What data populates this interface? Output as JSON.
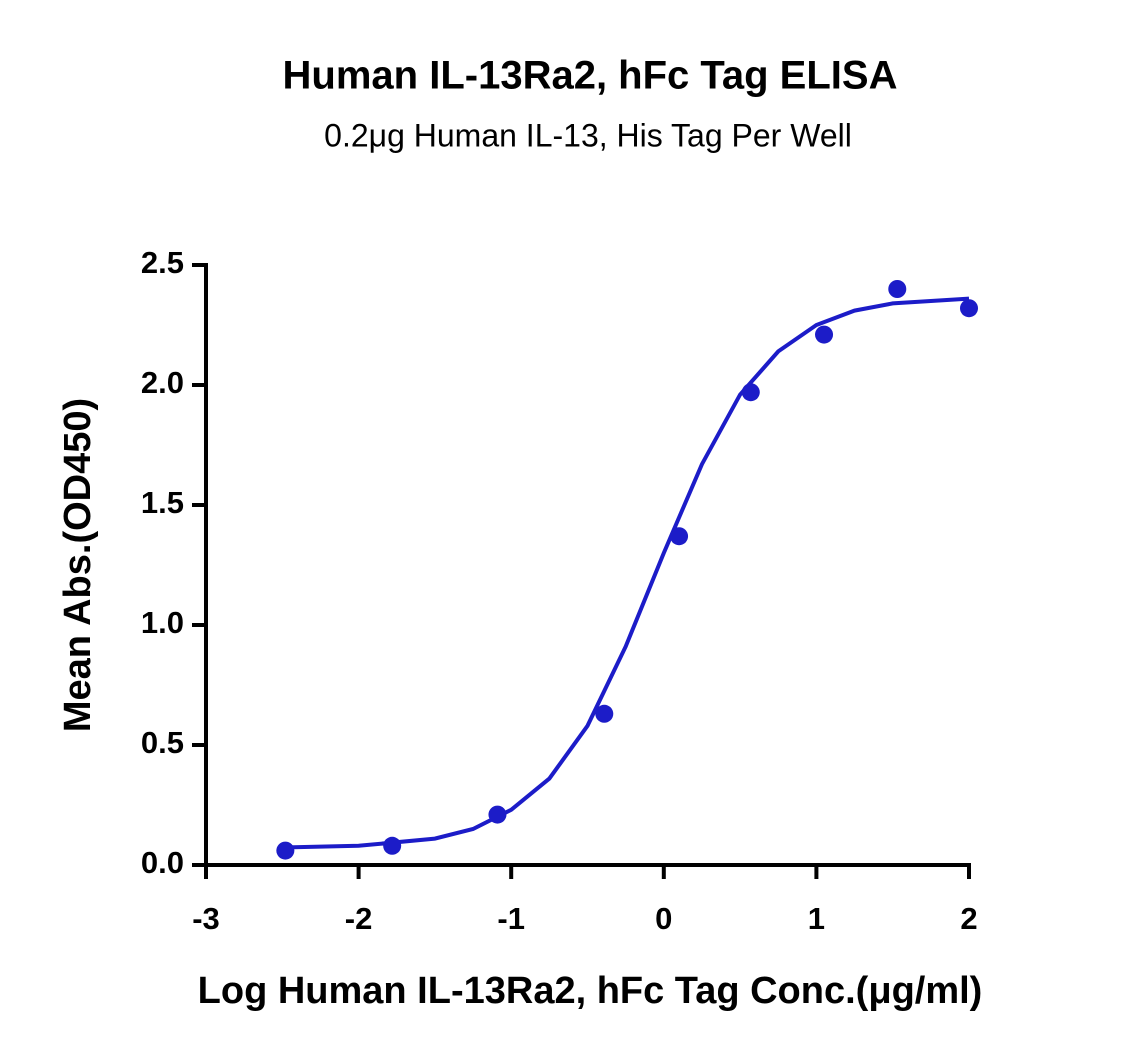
{
  "chart_data": {
    "type": "scatter",
    "title": "Human IL-13Ra2, hFc Tag ELISA",
    "subtitle": "0.2μg Human IL-13, His Tag Per Well",
    "x_label": "Log Human IL-13Ra2, hFc Tag Conc.(μg/ml)",
    "y_label": "Mean Abs.(OD450)",
    "xlim": [
      -3,
      2
    ],
    "xticks": [
      -3,
      -2,
      -1,
      0,
      1,
      2
    ],
    "ylim": [
      0,
      2.5
    ],
    "yticks": [
      {
        "value": 0,
        "label": "0.0"
      },
      0.5,
      {
        "value": 1,
        "label": "1.0"
      },
      1.5,
      {
        "value": 2,
        "label": "2.0"
      },
      2.5
    ],
    "series": [
      {
        "style": "points",
        "color": "#1c1cc8",
        "x": [
          -2.48,
          -1.78,
          -1.09,
          -0.39,
          0.1,
          0.57,
          1.05,
          1.53,
          2.0
        ],
        "values": [
          0.06,
          0.08,
          0.21,
          0.63,
          1.37,
          1.97,
          2.21,
          2.4,
          2.32
        ]
      },
      {
        "style": "line",
        "color": "#1c1cc8",
        "x": [
          -2.5,
          -2,
          -1.5,
          -1.25,
          -1,
          -0.75,
          -0.5,
          -0.25,
          0,
          0.25,
          0.5,
          0.75,
          1,
          1.25,
          1.5,
          2
        ],
        "values": [
          0.073,
          0.08,
          0.11,
          0.15,
          0.23,
          0.36,
          0.58,
          0.91,
          1.3,
          1.67,
          1.96,
          2.14,
          2.25,
          2.31,
          2.34,
          2.36
        ]
      }
    ]
  }
}
